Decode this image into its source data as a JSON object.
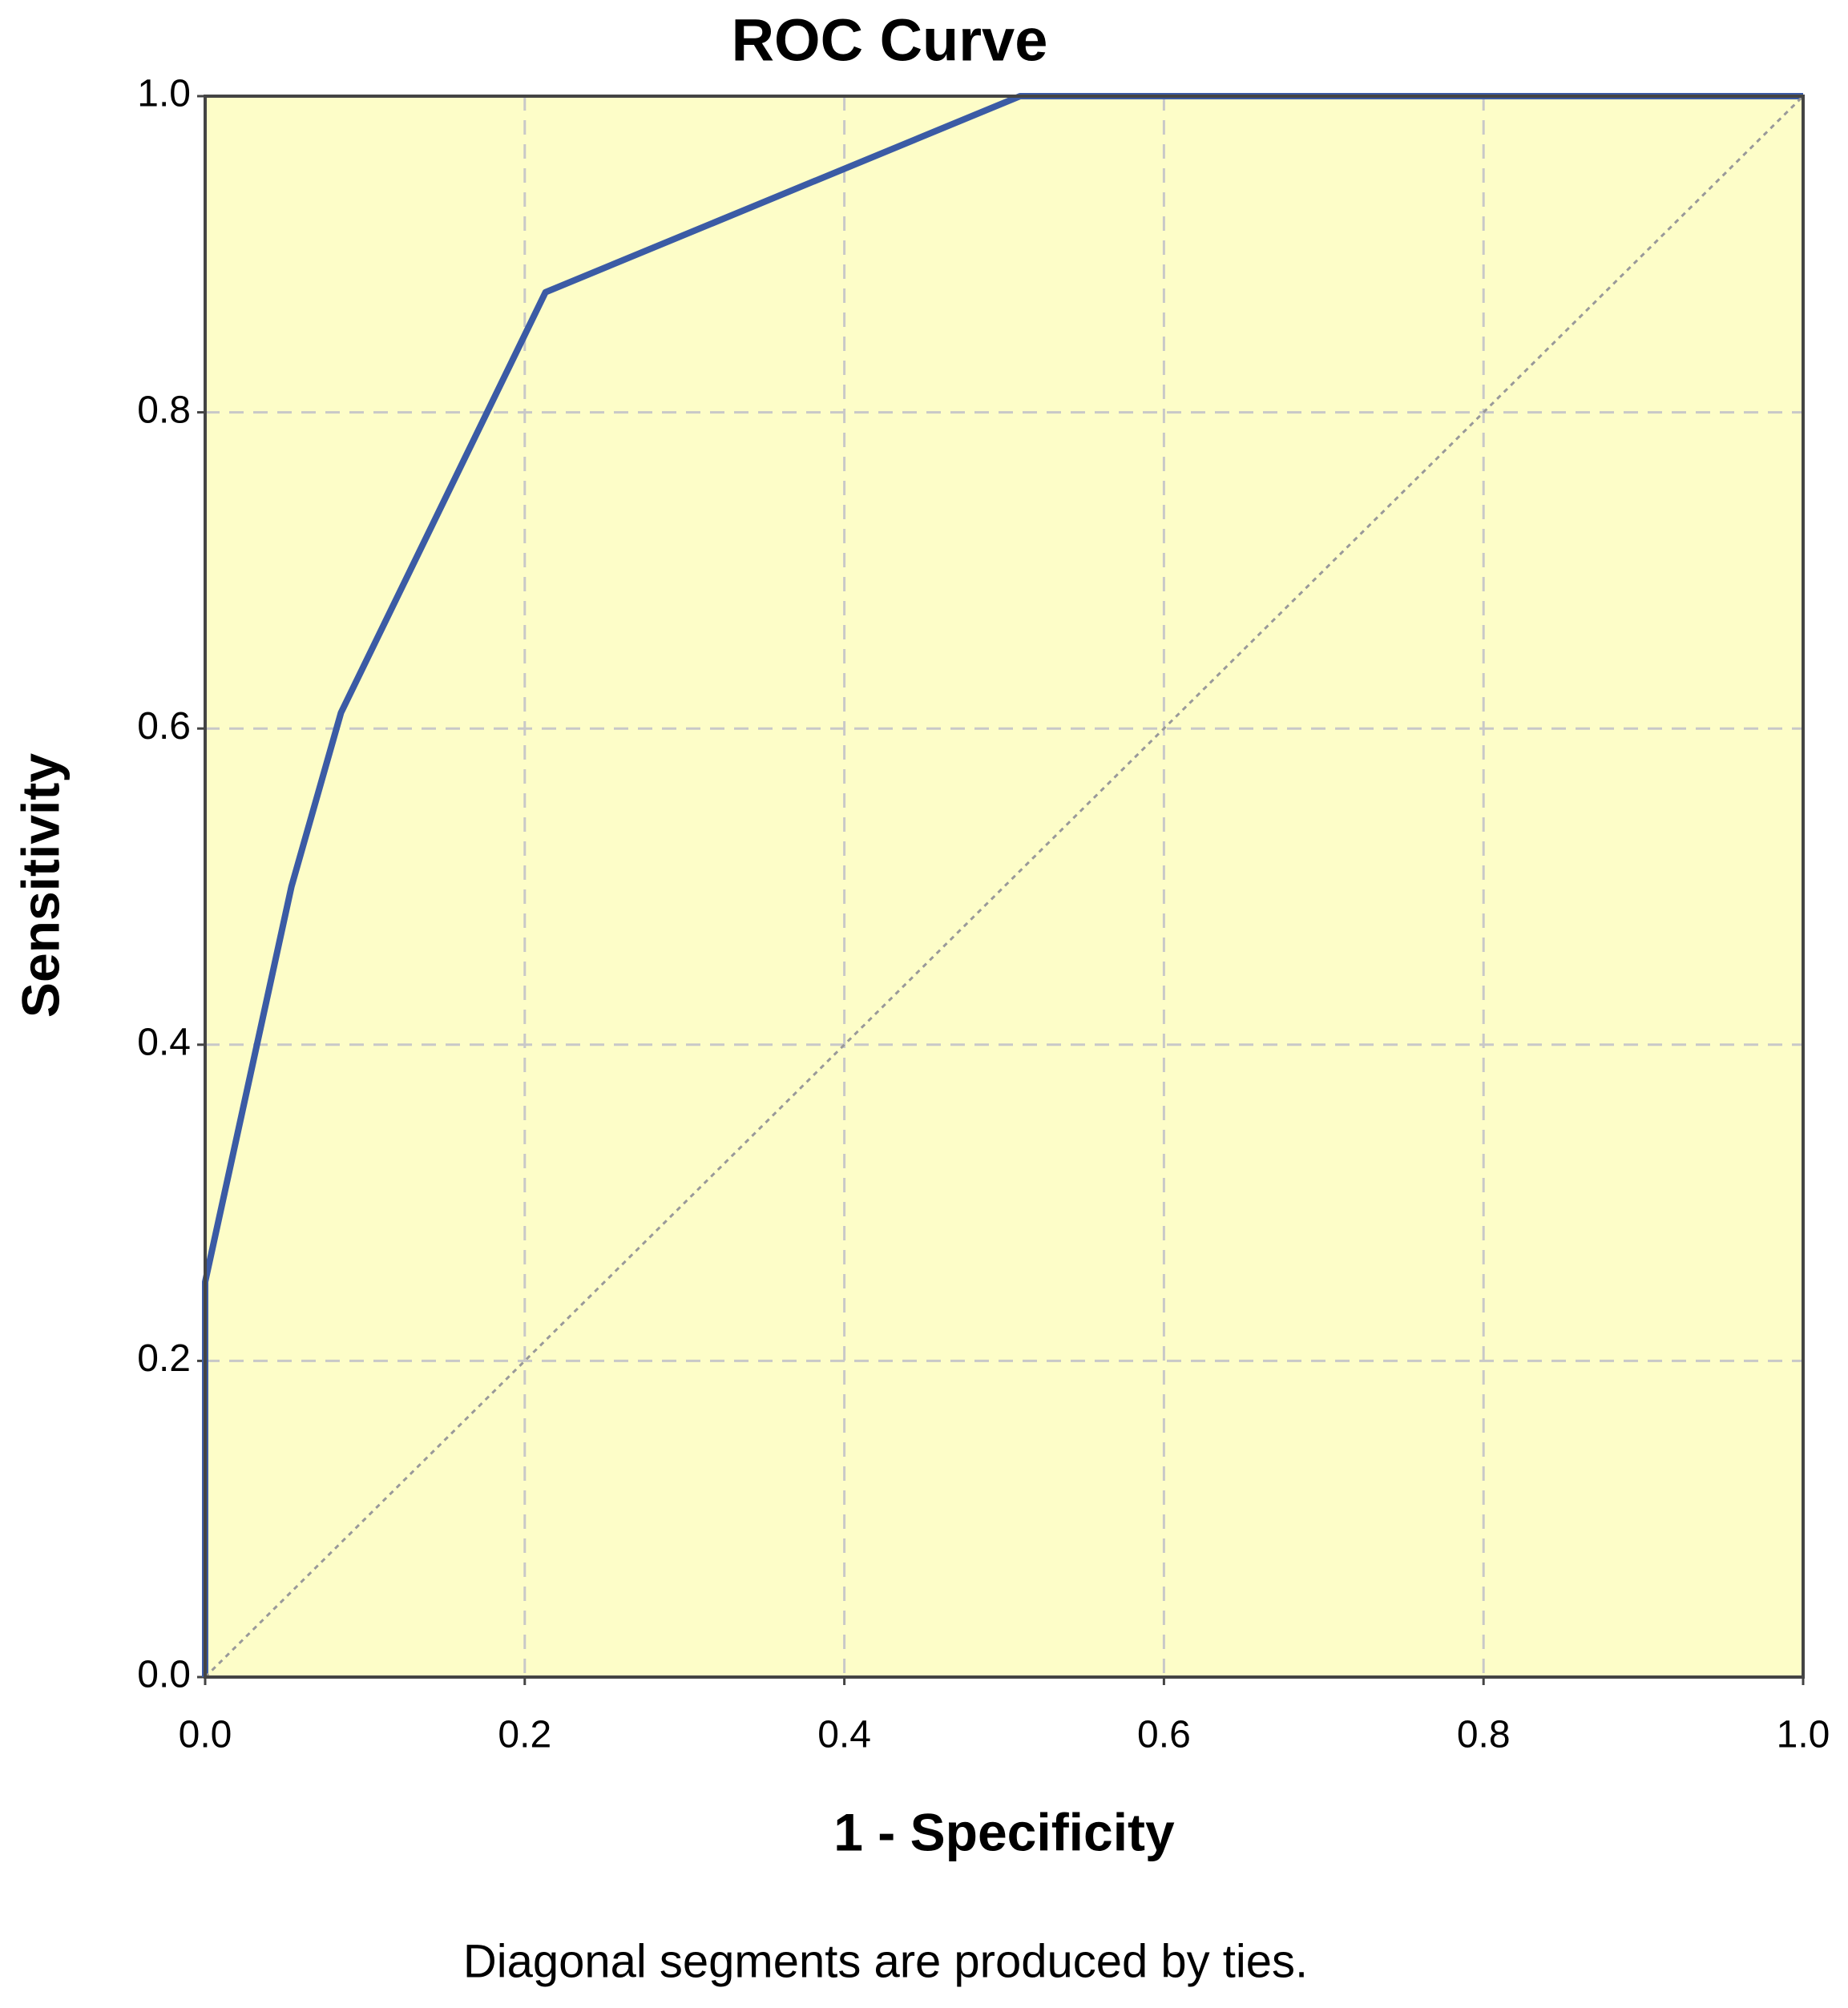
{
  "chart_data": {
    "type": "line",
    "title": "ROC Curve",
    "x_label": "1 - Specificity",
    "y_label": "Sensitivity",
    "note": "Diagonal segments are produced by ties.",
    "series": [
      {
        "color": "#3b5ba5",
        "x": [
          0,
          0,
          0.054,
          0.085,
          0.213,
          0.51,
          1
        ],
        "values": [
          0,
          0.25,
          0.5,
          0.61,
          0.876,
          1,
          1
        ]
      },
      {
        "color": "#999999",
        "x": [
          0,
          1
        ],
        "values": [
          0,
          1
        ]
      }
    ],
    "xlim": [
      0,
      1
    ],
    "ylim": [
      0,
      1
    ],
    "xticks": [
      {
        "value": 0,
        "label": "0.0"
      },
      0.2,
      0.4,
      0.6,
      0.8,
      {
        "value": 1,
        "label": "1.0"
      }
    ],
    "yticks": [
      {
        "value": 0,
        "label": "0.0"
      },
      0.2,
      0.4,
      0.6,
      0.8,
      {
        "value": 1,
        "label": "1.0"
      }
    ],
    "grid": true,
    "background": "#fdfdc8"
  }
}
